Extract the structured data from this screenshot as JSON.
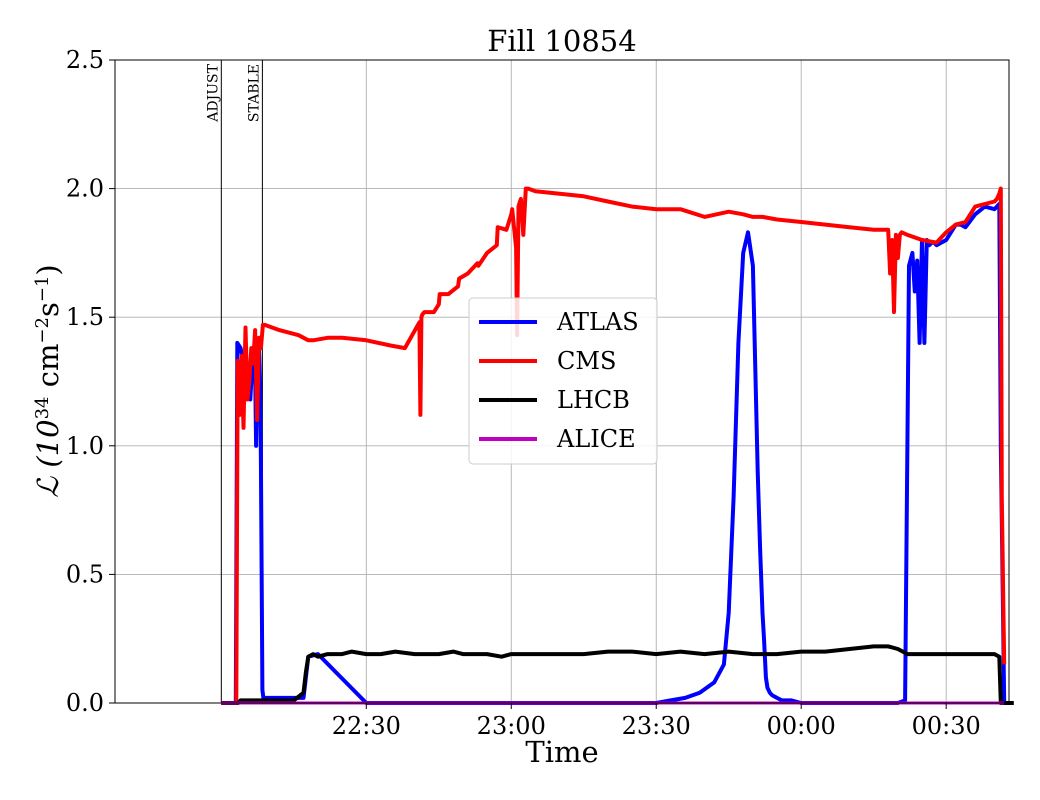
{
  "chart_data": {
    "type": "line",
    "title": "Fill 10854",
    "xlabel": "Time",
    "ylabel": "ℒ (10",
    "ylabel_exp": "34",
    "ylabel_unit": " cm",
    "ylabel_exp2": "−2",
    "ylabel_unit2": "s",
    "ylabel_exp3": "−1",
    "ylabel_end": ")",
    "x_axis": {
      "unit": "minutes after 22:00",
      "range": [
        -22,
        163
      ]
    },
    "y_axis": {
      "range": [
        0,
        2.5
      ]
    },
    "x_ticks": [
      {
        "value": 30,
        "label": "22:30"
      },
      {
        "value": 60,
        "label": "23:00"
      },
      {
        "value": 90,
        "label": "23:30"
      },
      {
        "value": 120,
        "label": "00:00"
      },
      {
        "value": 150,
        "label": "00:30"
      }
    ],
    "y_ticks": [
      {
        "value": 0,
        "label": "0.0"
      },
      {
        "value": 0.5,
        "label": "0.5"
      },
      {
        "value": 1.0,
        "label": "1.0"
      },
      {
        "value": 1.5,
        "label": "1.5"
      },
      {
        "value": 2.0,
        "label": "2.0"
      },
      {
        "value": 2.5,
        "label": "2.5"
      }
    ],
    "grid": true,
    "legend_position": "center",
    "markers": [
      {
        "label": "ADJUST",
        "x": 0
      },
      {
        "label": "STABLE",
        "x": 8.5
      }
    ],
    "series": [
      {
        "name": "ATLAS",
        "color": "#0000ff",
        "x": [
          0,
          3,
          3.3,
          4,
          4.5,
          5,
          5.5,
          6,
          6.5,
          7,
          7.2,
          7.5,
          7.8,
          8,
          8.2,
          8.5,
          8.7,
          9,
          15,
          17,
          17.5,
          18,
          20,
          30,
          60,
          90,
          93,
          96,
          99,
          102,
          104,
          105,
          106,
          107,
          108,
          109,
          110,
          110.5,
          111,
          111.5,
          112,
          112.3,
          112.7,
          113,
          113.5,
          114,
          115,
          116,
          118,
          120,
          125,
          135,
          140,
          141.5,
          142.3,
          143,
          143.5,
          144,
          144.5,
          145,
          145.5,
          146,
          146.5,
          147,
          147.5,
          148,
          150,
          152,
          153,
          154,
          156,
          158,
          160,
          161,
          161.3,
          162
        ],
        "y": [
          0,
          0,
          1.4,
          1.38,
          1.32,
          1.36,
          1.25,
          1.18,
          1.35,
          1.3,
          1.0,
          1.4,
          1.38,
          1.25,
          0.95,
          0.05,
          0.02,
          0.02,
          0.02,
          0.02,
          0.1,
          0.18,
          0.19,
          0.0,
          0.0,
          0.0,
          0.01,
          0.02,
          0.04,
          0.08,
          0.15,
          0.35,
          0.8,
          1.4,
          1.75,
          1.83,
          1.7,
          1.3,
          0.9,
          0.6,
          0.35,
          0.25,
          0.1,
          0.06,
          0.04,
          0.03,
          0.02,
          0.01,
          0.01,
          0,
          0,
          0,
          0,
          0.01,
          1.7,
          1.75,
          1.6,
          1.72,
          1.4,
          1.8,
          1.4,
          1.8,
          1.78,
          1.79,
          1.79,
          1.78,
          1.8,
          1.86,
          1.86,
          1.85,
          1.9,
          1.93,
          1.92,
          1.94,
          1.0,
          0
        ],
        "width": 4
      },
      {
        "name": "CMS",
        "color": "#ff0000",
        "x": [
          0,
          3.1,
          3.4,
          3.8,
          4.2,
          4.6,
          5,
          5.4,
          5.8,
          6.2,
          6.6,
          7,
          7.4,
          7.8,
          8.2,
          8.6,
          9,
          12,
          16,
          18,
          19,
          22,
          25,
          30,
          35,
          38,
          41,
          41.2,
          41.4,
          41.6,
          42,
          44,
          45,
          45.2,
          47,
          49,
          49.2,
          51,
          53,
          53.2,
          55,
          57,
          57.2,
          59,
          60,
          60.2,
          61,
          61.2,
          61.5,
          61.8,
          62,
          62.5,
          63,
          63.5,
          65,
          70,
          75,
          80,
          85,
          90,
          95,
          100,
          105,
          108,
          110,
          112,
          115,
          120,
          130,
          135,
          138,
          138.4,
          138.8,
          139.2,
          139.6,
          140,
          140.4,
          140.8,
          142,
          145,
          148,
          150,
          152,
          154,
          156,
          158,
          160,
          160.5,
          161,
          161.3,
          161.5,
          162
        ],
        "y": [
          0,
          0,
          1.33,
          1.12,
          1.35,
          1.07,
          1.46,
          1.18,
          1.25,
          1.38,
          1.32,
          1.45,
          1.1,
          1.42,
          1.38,
          1.47,
          1.47,
          1.45,
          1.43,
          1.41,
          1.41,
          1.42,
          1.42,
          1.41,
          1.39,
          1.38,
          1.48,
          1.12,
          1.5,
          1.51,
          1.52,
          1.52,
          1.55,
          1.59,
          1.59,
          1.62,
          1.65,
          1.67,
          1.71,
          1.7,
          1.75,
          1.78,
          1.85,
          1.84,
          1.9,
          1.92,
          1.77,
          1.43,
          1.93,
          1.95,
          1.96,
          1.82,
          2.0,
          2.0,
          1.99,
          1.98,
          1.97,
          1.95,
          1.93,
          1.92,
          1.92,
          1.89,
          1.91,
          1.9,
          1.89,
          1.89,
          1.88,
          1.87,
          1.85,
          1.84,
          1.84,
          1.67,
          1.8,
          1.52,
          1.82,
          1.73,
          1.82,
          1.83,
          1.82,
          1.8,
          1.79,
          1.83,
          1.86,
          1.87,
          1.93,
          1.94,
          1.95,
          1.96,
          1.98,
          2.0,
          0.8,
          0.15
        ],
        "width": 4
      },
      {
        "name": "LHCB",
        "color": "#000000",
        "x": [
          0,
          3.5,
          4,
          8,
          15,
          17,
          17.5,
          18,
          19,
          20,
          22,
          25,
          27,
          30,
          33,
          36,
          40,
          45,
          48,
          50,
          55,
          58,
          60,
          65,
          70,
          75,
          80,
          85,
          90,
          95,
          100,
          105,
          110,
          115,
          120,
          125,
          130,
          135,
          138,
          140,
          142,
          145,
          150,
          155,
          158,
          160,
          161,
          161.3,
          162,
          164
        ],
        "y": [
          0,
          0,
          0.01,
          0.01,
          0.01,
          0.04,
          0.12,
          0.18,
          0.19,
          0.18,
          0.19,
          0.19,
          0.2,
          0.19,
          0.19,
          0.2,
          0.19,
          0.19,
          0.2,
          0.19,
          0.19,
          0.18,
          0.19,
          0.19,
          0.19,
          0.19,
          0.2,
          0.2,
          0.19,
          0.2,
          0.19,
          0.2,
          0.19,
          0.19,
          0.2,
          0.2,
          0.21,
          0.22,
          0.22,
          0.21,
          0.19,
          0.19,
          0.19,
          0.19,
          0.19,
          0.19,
          0.18,
          0.0,
          0.0,
          0.0
        ],
        "width": 4
      },
      {
        "name": "ALICE",
        "color": "#bf00bf",
        "x": [
          0,
          162
        ],
        "y": [
          0,
          0
        ],
        "width": 3
      }
    ]
  }
}
